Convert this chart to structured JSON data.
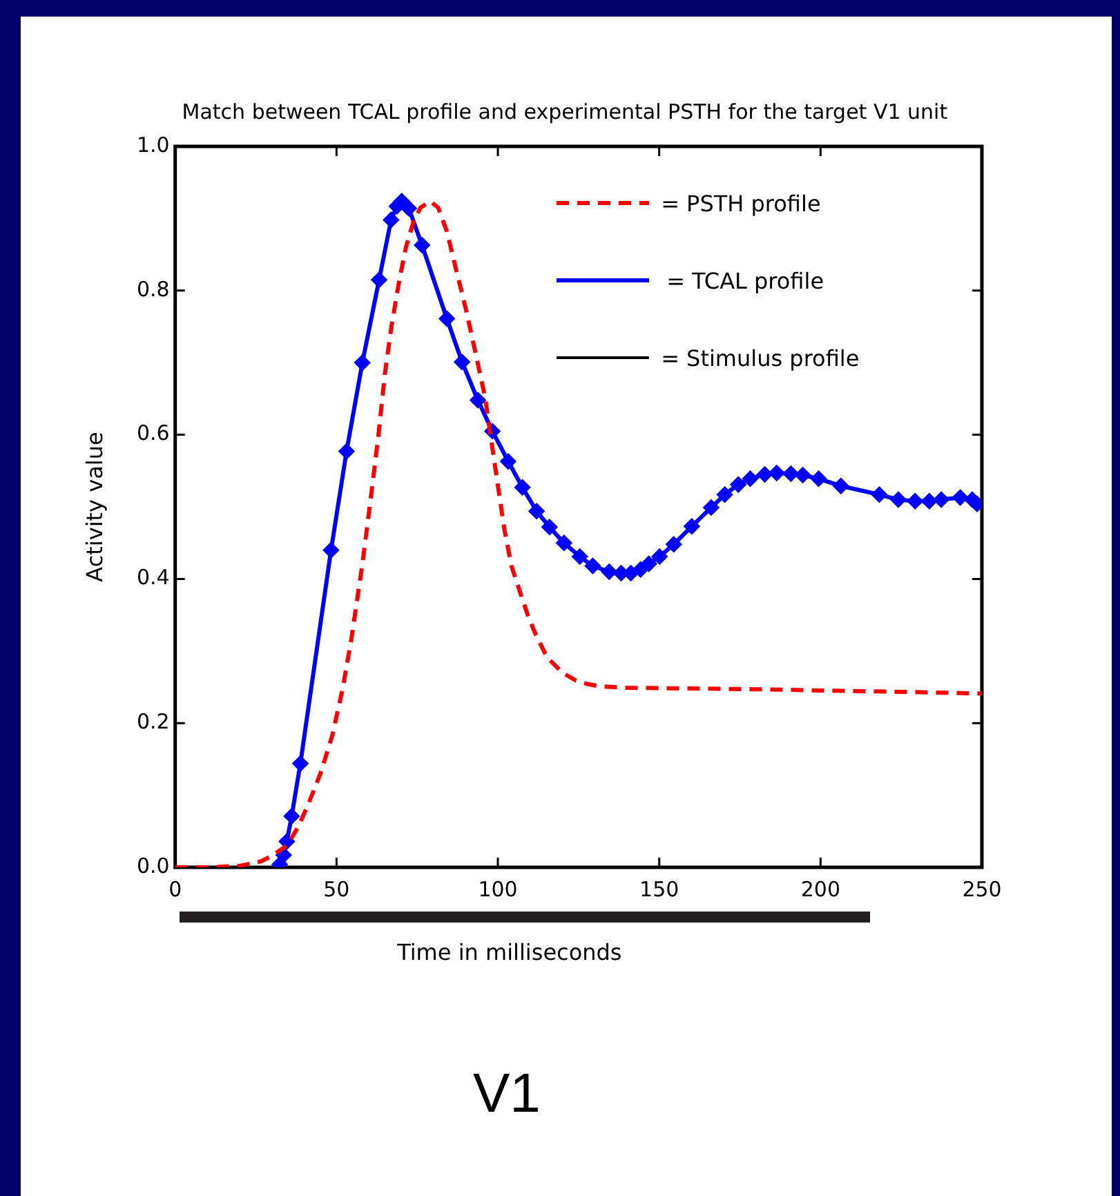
{
  "chart_data": {
    "type": "line",
    "title": "Match between TCAL profile and experimental PSTH for the target V1 unit",
    "xlabel": "Time in milliseconds",
    "ylabel": "Activity value",
    "xlim": [
      0,
      250
    ],
    "xticks": [
      0,
      50,
      100,
      150,
      200,
      250
    ],
    "ylim": [
      0,
      1.0
    ],
    "yticks": [
      {
        "value": 0,
        "label": "0.0"
      },
      0.2,
      0.4,
      0.6,
      0.8,
      {
        "value": 1,
        "label": "1.0"
      }
    ],
    "grid": false,
    "legend": "top right",
    "series": [
      {
        "name": "= PSTH profile",
        "color": "#ff0000",
        "line_style": "dashed",
        "marker": "none",
        "x": [
          0,
          10,
          20,
          26.5,
          30,
          34.6,
          38,
          41.3,
          45,
          48.7,
          52,
          54.6,
          58,
          60.5,
          63,
          65,
          67,
          69.4,
          71.5,
          73.8,
          76,
          79,
          81.5,
          84.2,
          87,
          90.1,
          93,
          96,
          99,
          102,
          104.2,
          107,
          109.4,
          112,
          115.3,
          120,
          124.2,
          128,
          131.6,
          140,
          159.7,
          180,
          204.1,
          230,
          250
        ],
        "values": [
          0,
          0,
          0.002,
          0.008,
          0.016,
          0.03,
          0.055,
          0.088,
          0.13,
          0.183,
          0.25,
          0.317,
          0.42,
          0.508,
          0.6,
          0.685,
          0.75,
          0.813,
          0.86,
          0.895,
          0.915,
          0.924,
          0.915,
          0.882,
          0.83,
          0.774,
          0.715,
          0.653,
          0.56,
          0.469,
          0.418,
          0.38,
          0.348,
          0.32,
          0.291,
          0.27,
          0.259,
          0.254,
          0.251,
          0.249,
          0.248,
          0.247,
          0.245,
          0.243,
          0.241
        ]
      },
      {
        "name": "= TCAL profile",
        "color": "#0000ff",
        "line_style": "solid",
        "marker": "diamond",
        "x": [
          32.4,
          33.6,
          34.6,
          36.1,
          38.8,
          48.3,
          53.1,
          58.0,
          63.2,
          66.9,
          68.7,
          70.2,
          72.4,
          76.5,
          84.2,
          88.9,
          93.8,
          98.3,
          103.2,
          107.6,
          112.0,
          116.0,
          120.5,
          125.4,
          129.4,
          134.5,
          138.2,
          141.2,
          144.2,
          146.8,
          150.1,
          154.5,
          160.1,
          166.1,
          170.3,
          174.5,
          178.2,
          182.7,
          186.4,
          190.8,
          194.5,
          199.4,
          206.3,
          218.2,
          224.1,
          229.3,
          233.7,
          237.4,
          243.3,
          247.0,
          248.5
        ],
        "values": [
          0.004,
          0.017,
          0.036,
          0.071,
          0.144,
          0.44,
          0.577,
          0.7,
          0.815,
          0.898,
          0.917,
          0.924,
          0.914,
          0.863,
          0.761,
          0.701,
          0.648,
          0.605,
          0.563,
          0.527,
          0.494,
          0.472,
          0.45,
          0.431,
          0.418,
          0.41,
          0.408,
          0.408,
          0.413,
          0.421,
          0.431,
          0.448,
          0.473,
          0.499,
          0.517,
          0.531,
          0.539,
          0.545,
          0.547,
          0.546,
          0.544,
          0.539,
          0.529,
          0.517,
          0.51,
          0.508,
          0.508,
          0.51,
          0.513,
          0.51,
          0.504
        ]
      }
    ],
    "annotations": [
      "= Stimulus profile",
      "V1"
    ]
  }
}
